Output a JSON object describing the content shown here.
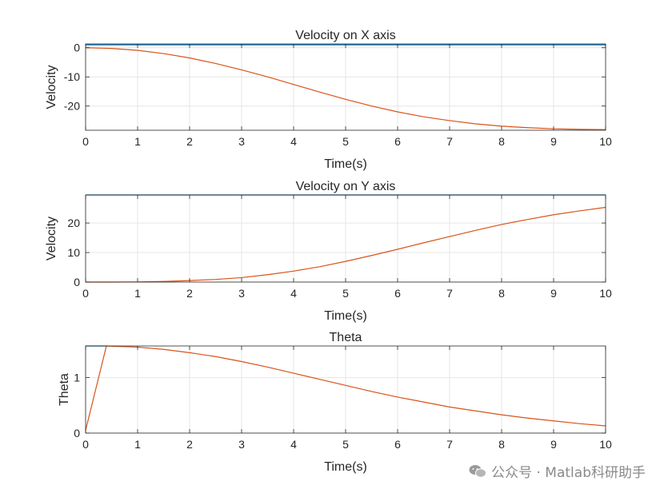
{
  "chart_data": [
    {
      "type": "line",
      "title": "Velocity on X axis",
      "xlabel": "Time(s)",
      "ylabel": "Velocity",
      "xlim": [
        0,
        10
      ],
      "ylim": [
        -28.3,
        1.3
      ],
      "xticks": [
        0,
        1,
        2,
        3,
        4,
        5,
        6,
        7,
        8,
        9,
        10
      ],
      "yticks": [
        0,
        -10,
        -20
      ],
      "ytick_labels": [
        "0",
        "-10",
        "-20"
      ],
      "grid": true,
      "series": [
        {
          "color": "#0072BD",
          "x": [
            0,
            10
          ],
          "y": [
            1.0,
            1.0
          ]
        },
        {
          "color": "#D95319",
          "x": [
            0,
            0.5,
            1,
            1.5,
            2,
            2.5,
            3,
            3.5,
            4,
            4.5,
            5,
            5.5,
            6,
            6.5,
            7,
            7.5,
            8,
            8.5,
            9,
            9.5,
            10
          ],
          "y": [
            0,
            -0.25,
            -0.9,
            -2.0,
            -3.5,
            -5.4,
            -7.6,
            -10.0,
            -12.6,
            -15.2,
            -17.7,
            -20.0,
            -22.0,
            -23.7,
            -25.0,
            -26.1,
            -26.9,
            -27.4,
            -27.8,
            -28.0,
            -28.1
          ]
        }
      ]
    },
    {
      "type": "line",
      "title": "Velocity on Y axis",
      "xlabel": "Time(s)",
      "ylabel": "Velocity",
      "xlim": [
        0,
        10
      ],
      "ylim": [
        0,
        29.5
      ],
      "xticks": [
        0,
        1,
        2,
        3,
        4,
        5,
        6,
        7,
        8,
        9,
        10
      ],
      "yticks": [
        0,
        10,
        20
      ],
      "ytick_labels": [
        "0",
        "10",
        "20"
      ],
      "grid": true,
      "series": [
        {
          "color": "#0072BD",
          "x": [
            0,
            10
          ],
          "y": [
            29.5,
            29.5
          ]
        },
        {
          "color": "#D95319",
          "x": [
            0,
            0.5,
            1,
            1.5,
            2,
            2.5,
            3,
            3.5,
            4,
            4.5,
            5,
            5.5,
            6,
            6.5,
            7,
            7.5,
            8,
            8.5,
            9,
            9.5,
            10
          ],
          "y": [
            0,
            0,
            0.05,
            0.2,
            0.5,
            0.9,
            1.5,
            2.5,
            3.7,
            5.2,
            7.0,
            9.0,
            11.1,
            13.3,
            15.4,
            17.5,
            19.5,
            21.2,
            22.8,
            24.1,
            25.3
          ]
        }
      ]
    },
    {
      "type": "line",
      "title": "Theta",
      "xlabel": "Time(s)",
      "ylabel": "Theta",
      "xlim": [
        0,
        10
      ],
      "ylim": [
        0,
        1.5708
      ],
      "xticks": [
        0,
        1,
        2,
        3,
        4,
        5,
        6,
        7,
        8,
        9,
        10
      ],
      "yticks": [
        0,
        1
      ],
      "ytick_labels": [
        "0",
        "1"
      ],
      "grid": true,
      "series": [
        {
          "color": "#0072BD",
          "x": [
            0,
            0.4
          ],
          "y": [
            1.5708,
            1.5708
          ]
        },
        {
          "color": "#D95319",
          "x": [
            0,
            0.4,
            1,
            1.5,
            2,
            2.5,
            3,
            3.5,
            4,
            4.5,
            5,
            5.5,
            6,
            6.5,
            7,
            7.5,
            8,
            8.5,
            9,
            9.5,
            10
          ],
          "y": [
            0.05,
            1.5708,
            1.55,
            1.51,
            1.45,
            1.38,
            1.29,
            1.19,
            1.08,
            0.97,
            0.86,
            0.75,
            0.65,
            0.56,
            0.47,
            0.4,
            0.33,
            0.27,
            0.22,
            0.17,
            0.13
          ]
        }
      ]
    }
  ],
  "watermark": "公众号 · Matlab科研助手"
}
